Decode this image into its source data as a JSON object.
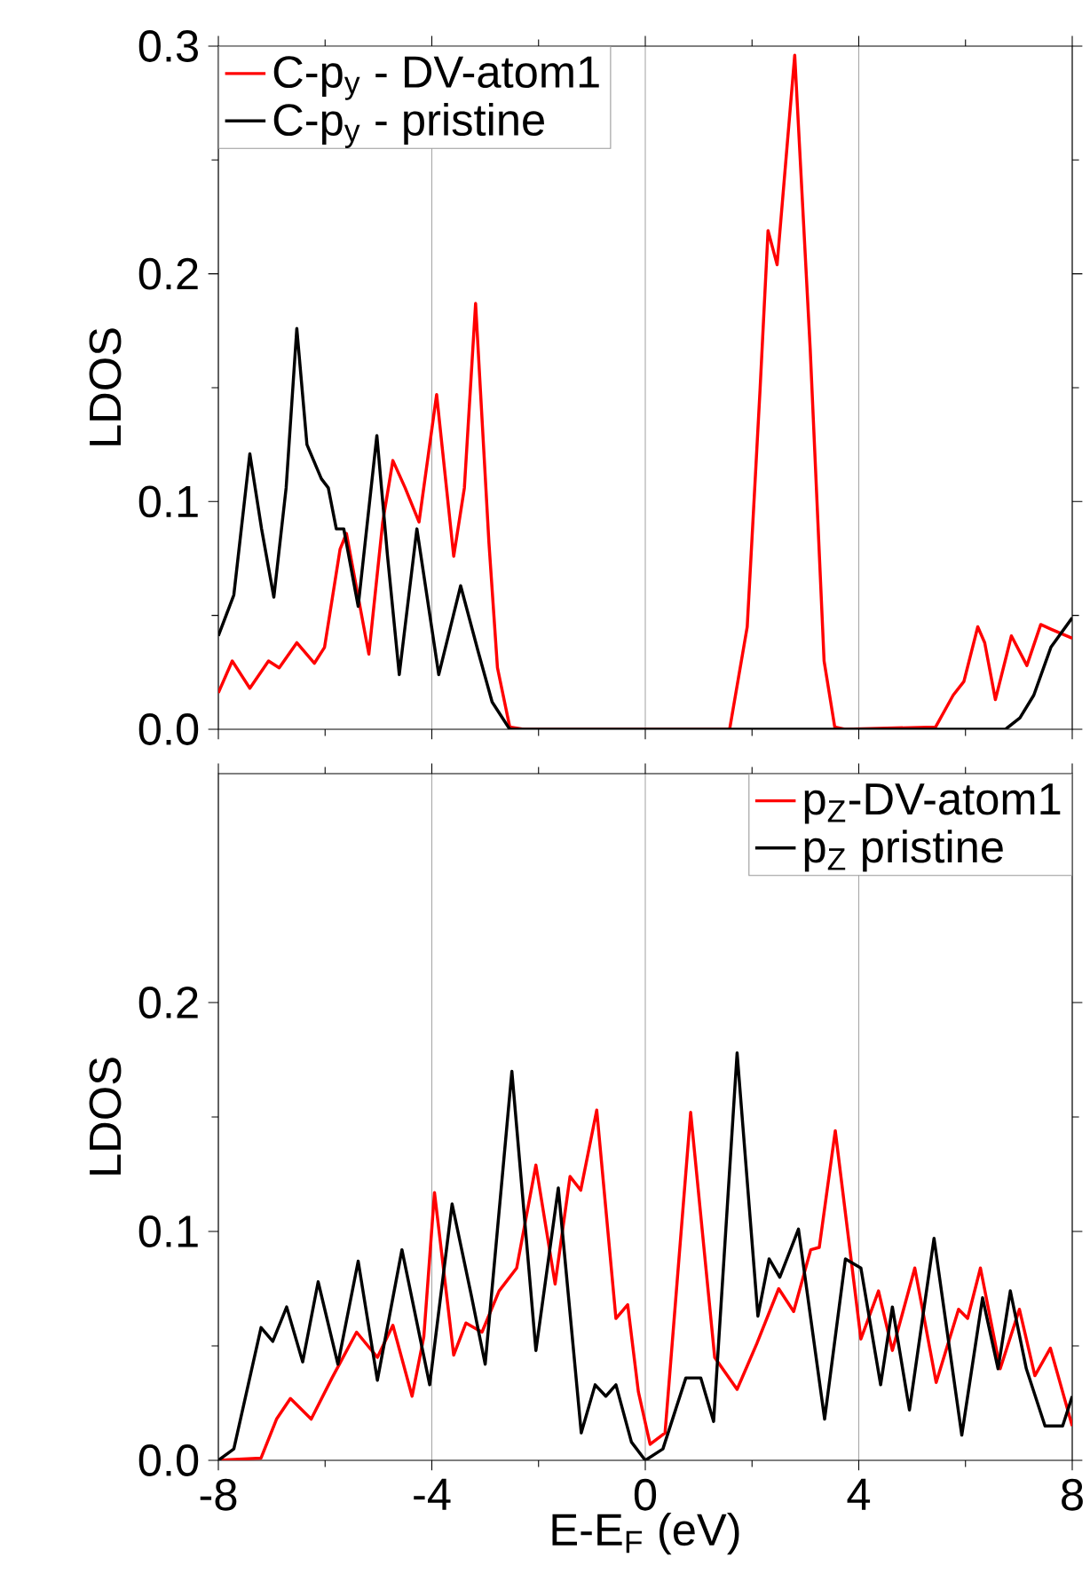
{
  "chart_data": [
    {
      "type": "line",
      "ylabel": "LDOS",
      "xlim": [
        -8,
        8
      ],
      "xticks": [
        -8,
        -4,
        0,
        4,
        8
      ],
      "ylim": [
        0,
        0.3
      ],
      "yticks": [
        {
          "value": 0,
          "label": "0.0"
        },
        0.1,
        0.2,
        0.3
      ],
      "grid": "x",
      "legend": "top left",
      "tick_labels": "y",
      "series": [
        {
          "name": "C-p$_{y}$ - DV-atom1",
          "color": "#ff0000",
          "x": [
            -8,
            -7.74,
            -7.41,
            -7.06,
            -6.86,
            -6.53,
            -6.2,
            -6.01,
            -5.72,
            -5.6,
            -5.45,
            -5.18,
            -4.92,
            -4.73,
            -4.5,
            -4.24,
            -3.91,
            -3.59,
            -3.39,
            -3.18,
            -2.93,
            -2.77,
            -2.54,
            -2.28,
            1.58,
            1.91,
            2.15,
            2.3,
            2.47,
            2.8,
            3.09,
            3.35,
            3.55,
            3.74,
            5.44,
            5.77,
            5.97,
            6.23,
            6.36,
            6.56,
            6.86,
            7.15,
            7.41,
            7.6,
            8.0
          ],
          "values": [
            0.016,
            0.03,
            0.018,
            0.03,
            0.027,
            0.038,
            0.029,
            0.036,
            0.079,
            0.086,
            0.067,
            0.033,
            0.091,
            0.118,
            0.106,
            0.091,
            0.147,
            0.076,
            0.106,
            0.187,
            0.082,
            0.027,
            0.001,
            0.0,
            0.0,
            0.045,
            0.149,
            0.219,
            0.204,
            0.296,
            0.167,
            0.03,
            0.001,
            0.0,
            0.001,
            0.015,
            0.021,
            0.045,
            0.038,
            0.013,
            0.041,
            0.028,
            0.046,
            0.044,
            0.04
          ]
        },
        {
          "name": "C-p$_{y}$ - pristine",
          "color": "#000000",
          "x": [
            -8,
            -7.71,
            -7.41,
            -7.19,
            -6.96,
            -6.73,
            -6.53,
            -6.34,
            -6.07,
            -5.94,
            -5.79,
            -5.65,
            -5.38,
            -5.03,
            -4.83,
            -4.61,
            -4.28,
            -3.87,
            -3.46,
            -3.13,
            -2.87,
            -2.54,
            6.75,
            7.02,
            7.28,
            7.6,
            8.0
          ],
          "values": [
            0.041,
            0.059,
            0.121,
            0.088,
            0.058,
            0.106,
            0.176,
            0.125,
            0.11,
            0.106,
            0.088,
            0.088,
            0.054,
            0.129,
            0.076,
            0.024,
            0.088,
            0.024,
            0.063,
            0.034,
            0.012,
            0.0,
            0.0,
            0.005,
            0.015,
            0.036,
            0.049
          ]
        }
      ]
    },
    {
      "type": "line",
      "xlabel": "E-E$_{F}$ (eV)",
      "ylabel": "LDOS",
      "xlim": [
        -8,
        8
      ],
      "xticks": [
        -8,
        -4,
        0,
        4,
        8
      ],
      "ylim": [
        0,
        0.3
      ],
      "yticks": [
        {
          "value": 0,
          "label": "0.0"
        },
        0.1,
        0.2
      ],
      "grid": "x",
      "legend": "top right",
      "series": [
        {
          "name": "p$_{Z}$-DV-atom1",
          "color": "#ff0000",
          "x": [
            -8,
            -7.2,
            -6.91,
            -6.65,
            -6.26,
            -5.87,
            -5.41,
            -5.02,
            -4.73,
            -4.37,
            -4.15,
            -3.95,
            -3.59,
            -3.36,
            -3.06,
            -2.74,
            -2.41,
            -2.05,
            -1.69,
            -1.41,
            -1.21,
            -0.91,
            -0.55,
            -0.33,
            -0.13,
            0.09,
            0.37,
            0.85,
            1.3,
            1.72,
            2.09,
            2.5,
            2.78,
            3.1,
            3.26,
            3.56,
            4.04,
            4.37,
            4.63,
            5.05,
            5.45,
            5.87,
            6.04,
            6.28,
            6.65,
            7.01,
            7.3,
            7.59,
            8.0
          ],
          "values": [
            0.0,
            0.001,
            0.018,
            0.027,
            0.018,
            0.036,
            0.056,
            0.045,
            0.059,
            0.028,
            0.054,
            0.117,
            0.046,
            0.06,
            0.056,
            0.074,
            0.084,
            0.129,
            0.077,
            0.124,
            0.118,
            0.153,
            0.062,
            0.068,
            0.03,
            0.007,
            0.012,
            0.152,
            0.045,
            0.031,
            0.051,
            0.075,
            0.065,
            0.092,
            0.093,
            0.144,
            0.053,
            0.074,
            0.048,
            0.084,
            0.034,
            0.066,
            0.062,
            0.084,
            0.04,
            0.066,
            0.037,
            0.049,
            0.015
          ]
        },
        {
          "name": "p$_{Z}$ pristine",
          "color": "#000000",
          "x": [
            -8,
            -7.71,
            -7.2,
            -6.98,
            -6.72,
            -6.42,
            -6.13,
            -5.76,
            -5.38,
            -5.02,
            -4.56,
            -4.04,
            -3.62,
            -3.26,
            -3.0,
            -2.5,
            -2.05,
            -1.63,
            -1.2,
            -0.94,
            -0.74,
            -0.55,
            -0.26,
            0.0,
            0.33,
            0.76,
            1.04,
            1.28,
            1.72,
            2.11,
            2.32,
            2.52,
            2.87,
            3.36,
            3.75,
            4.04,
            4.41,
            4.63,
            4.95,
            5.41,
            5.93,
            6.32,
            6.61,
            6.84,
            7.14,
            7.49,
            7.82,
            8.0
          ],
          "values": [
            0.0,
            0.005,
            0.058,
            0.052,
            0.067,
            0.043,
            0.078,
            0.042,
            0.087,
            0.035,
            0.092,
            0.033,
            0.112,
            0.072,
            0.042,
            0.17,
            0.048,
            0.119,
            0.012,
            0.033,
            0.028,
            0.033,
            0.008,
            0.0,
            0.005,
            0.036,
            0.036,
            0.017,
            0.178,
            0.063,
            0.088,
            0.08,
            0.101,
            0.018,
            0.088,
            0.084,
            0.033,
            0.067,
            0.022,
            0.097,
            0.011,
            0.071,
            0.04,
            0.074,
            0.04,
            0.015,
            0.015,
            0.028
          ]
        }
      ]
    }
  ]
}
